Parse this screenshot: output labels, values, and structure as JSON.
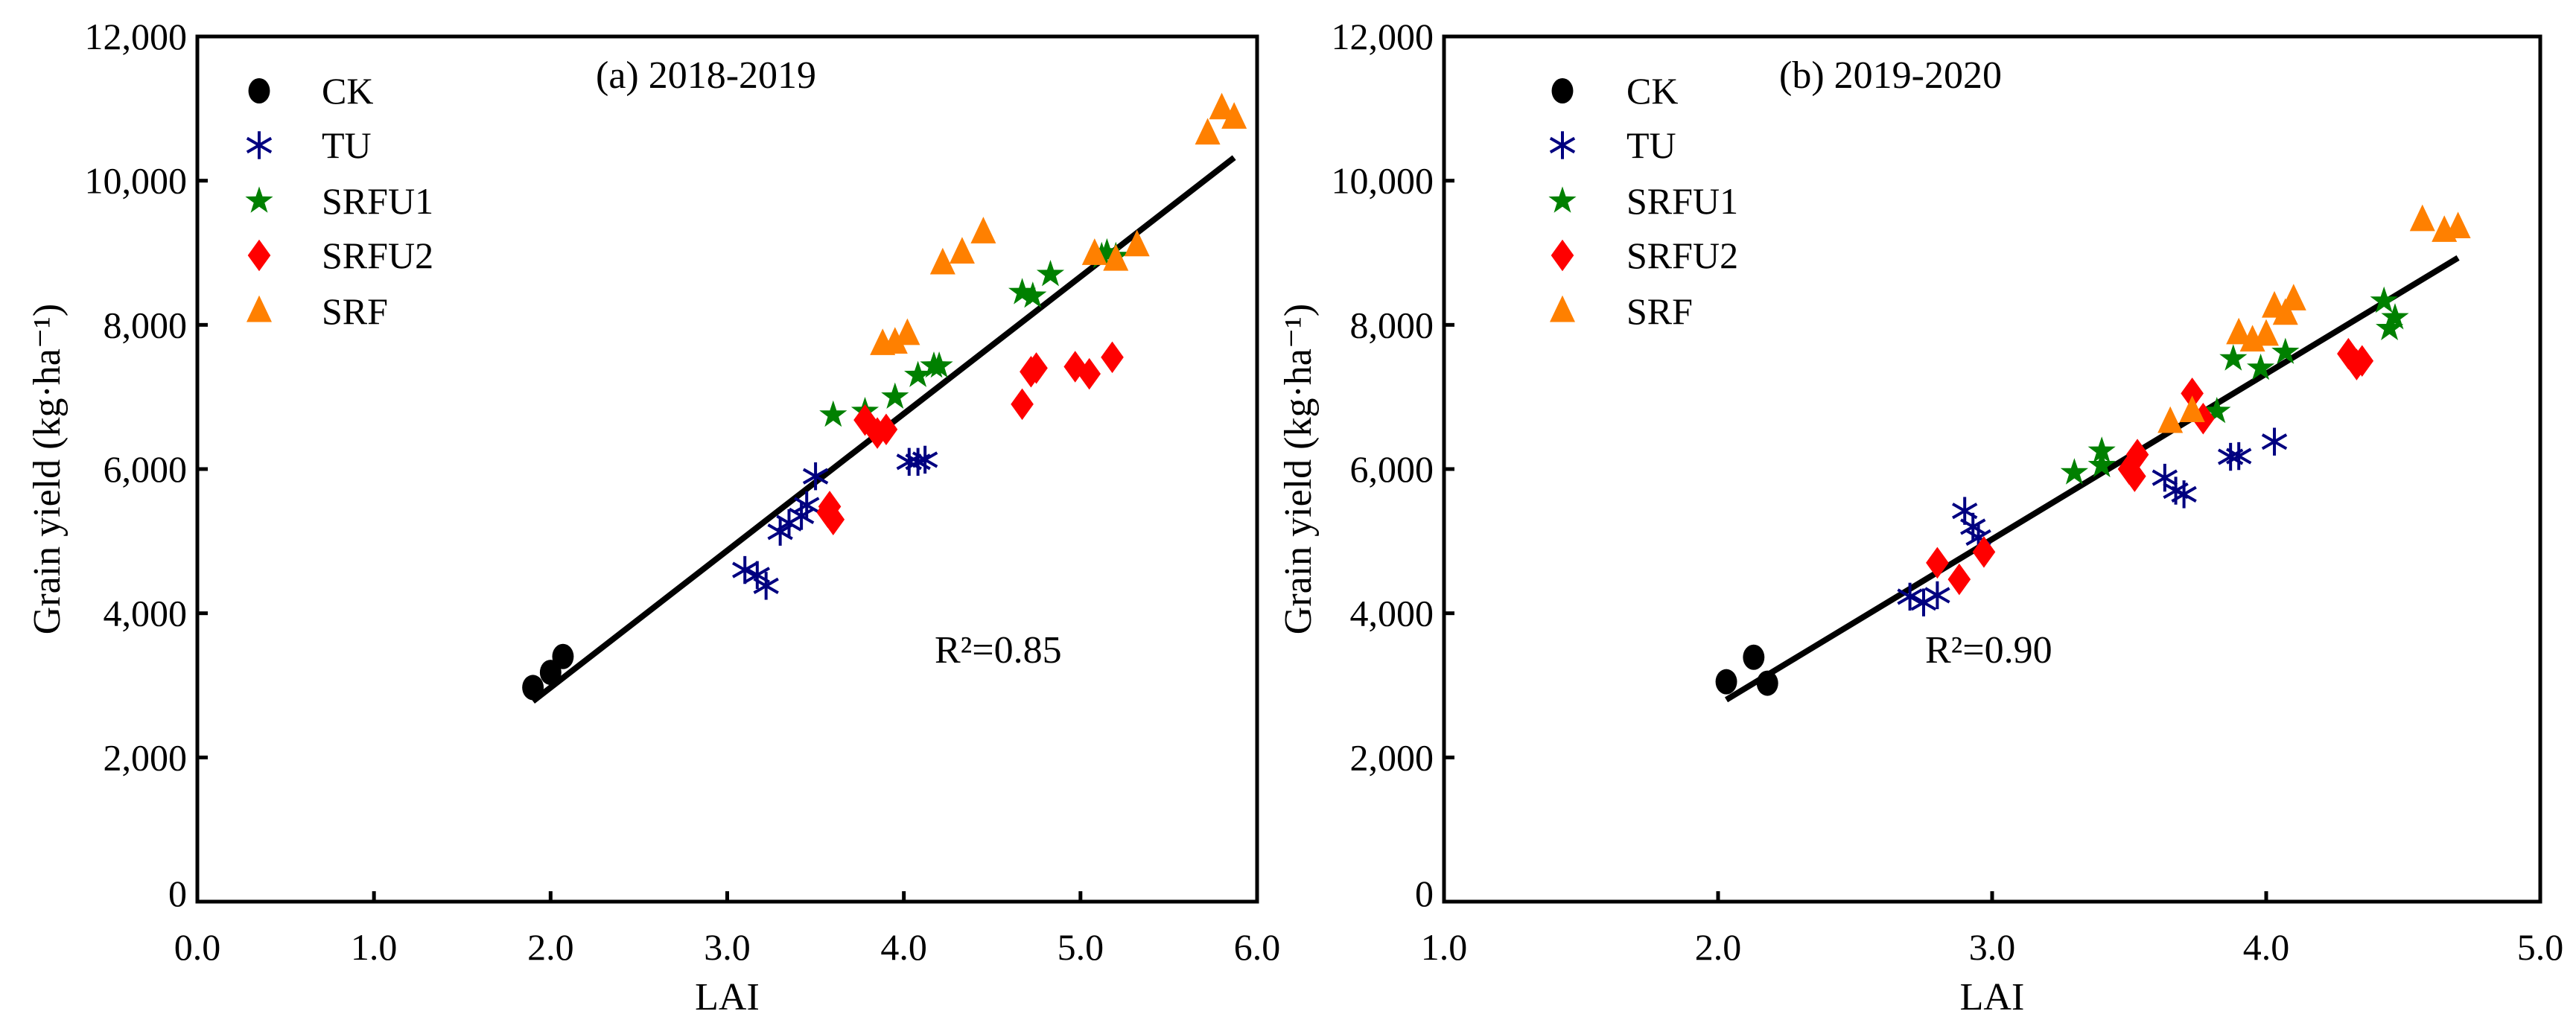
{
  "chart_data": [
    {
      "type": "scatter",
      "title": "(a) 2018-2019",
      "xlabel": "LAI",
      "ylabel": "Grain yield (kg·ha⁻¹)",
      "xlim": [
        0,
        6
      ],
      "ylim": [
        0,
        12000
      ],
      "xticks": [
        "0.0",
        "1.0",
        "2.0",
        "3.0",
        "4.0",
        "5.0",
        "6.0"
      ],
      "yticks": [
        "0",
        "2,000",
        "4,000",
        "6,000",
        "8,000",
        "10,000",
        "12,000"
      ],
      "legend_position": "top-left",
      "annotation": "R²=0.85",
      "fit_line": [
        [
          1.9,
          2780
        ],
        [
          5.87,
          10320
        ]
      ],
      "series": [
        {
          "name": "CK",
          "marker": "circle",
          "color": "#000000",
          "points": [
            [
              1.9,
              2970
            ],
            [
              2.0,
              3180
            ],
            [
              2.07,
              3400
            ]
          ]
        },
        {
          "name": "TU",
          "marker": "asterisk",
          "color": "#000080",
          "points": [
            [
              3.1,
              4600
            ],
            [
              3.17,
              4530
            ],
            [
              3.22,
              4380
            ],
            [
              3.3,
              5130
            ],
            [
              3.35,
              5250
            ],
            [
              3.42,
              5350
            ],
            [
              3.45,
              5500
            ],
            [
              3.5,
              5900
            ],
            [
              4.03,
              6100
            ],
            [
              4.08,
              6100
            ],
            [
              4.12,
              6130
            ]
          ]
        },
        {
          "name": "SRFU1",
          "marker": "star",
          "color": "#008000",
          "points": [
            [
              3.6,
              6750
            ],
            [
              3.78,
              6800
            ],
            [
              3.95,
              7000
            ],
            [
              4.08,
              7300
            ],
            [
              4.17,
              7430
            ],
            [
              4.2,
              7430
            ],
            [
              4.67,
              8450
            ],
            [
              4.73,
              8400
            ],
            [
              4.83,
              8700
            ],
            [
              5.12,
              8950
            ],
            [
              5.15,
              9000
            ],
            [
              5.2,
              8950
            ]
          ]
        },
        {
          "name": "SRFU2",
          "marker": "diamond",
          "color": "#ff0000",
          "points": [
            [
              3.78,
              6680
            ],
            [
              3.85,
              6500
            ],
            [
              3.9,
              6550
            ],
            [
              3.58,
              5480
            ],
            [
              3.6,
              5300
            ],
            [
              3.57,
              5400
            ],
            [
              4.67,
              6900
            ],
            [
              4.72,
              7350
            ],
            [
              4.75,
              7400
            ],
            [
              4.97,
              7420
            ],
            [
              5.05,
              7320
            ],
            [
              5.18,
              7550
            ]
          ]
        },
        {
          "name": "SRF",
          "marker": "triangle",
          "color": "#ff8000",
          "points": [
            [
              3.88,
              7730
            ],
            [
              3.95,
              7750
            ],
            [
              4.02,
              7870
            ],
            [
              4.22,
              8850
            ],
            [
              4.33,
              9000
            ],
            [
              4.45,
              9280
            ],
            [
              5.08,
              8980
            ],
            [
              5.2,
              8900
            ],
            [
              5.32,
              9100
            ],
            [
              5.72,
              10650
            ],
            [
              5.8,
              11000
            ],
            [
              5.87,
              10870
            ]
          ]
        }
      ]
    },
    {
      "type": "scatter",
      "title": "(b) 2019-2020",
      "xlabel": "LAI",
      "ylabel": "Grain yield (kg·ha⁻¹)",
      "xlim": [
        1,
        5
      ],
      "ylim": [
        0,
        12000
      ],
      "xticks": [
        "1.0",
        "2.0",
        "3.0",
        "4.0",
        "5.0"
      ],
      "yticks": [
        "0",
        "2,000",
        "4,000",
        "6,000",
        "8,000",
        "10,000",
        "12,000"
      ],
      "legend_position": "top-left",
      "annotation": "R²=0.90",
      "fit_line": [
        [
          2.03,
          2800
        ],
        [
          4.7,
          8930
        ]
      ],
      "series": [
        {
          "name": "CK",
          "marker": "circle",
          "color": "#000000",
          "points": [
            [
              2.03,
              3050
            ],
            [
              2.13,
              3390
            ],
            [
              2.18,
              3030
            ]
          ]
        },
        {
          "name": "TU",
          "marker": "asterisk",
          "color": "#000080",
          "points": [
            [
              2.7,
              4230
            ],
            [
              2.75,
              4150
            ],
            [
              2.8,
              4250
            ],
            [
              2.9,
              5420
            ],
            [
              2.93,
              5200
            ],
            [
              2.95,
              5050
            ],
            [
              3.63,
              5880
            ],
            [
              3.67,
              5700
            ],
            [
              3.7,
              5650
            ],
            [
              3.87,
              6170
            ],
            [
              3.9,
              6180
            ],
            [
              4.03,
              6380
            ]
          ]
        },
        {
          "name": "SRFU1",
          "marker": "star",
          "color": "#008000",
          "points": [
            [
              3.3,
              5950
            ],
            [
              3.4,
              6250
            ],
            [
              3.4,
              6050
            ],
            [
              3.82,
              6800
            ],
            [
              3.88,
              7530
            ],
            [
              3.98,
              7400
            ],
            [
              4.07,
              7620
            ],
            [
              4.43,
              8330
            ],
            [
              4.47,
              8100
            ],
            [
              4.45,
              7950
            ]
          ]
        },
        {
          "name": "SRFU2",
          "marker": "diamond",
          "color": "#ff0000",
          "points": [
            [
              2.8,
              4700
            ],
            [
              2.88,
              4470
            ],
            [
              2.97,
              4850
            ],
            [
              3.5,
              6000
            ],
            [
              3.52,
              5900
            ],
            [
              3.53,
              6200
            ],
            [
              3.73,
              7050
            ],
            [
              3.77,
              6700
            ],
            [
              4.3,
              7600
            ],
            [
              4.33,
              7450
            ],
            [
              4.35,
              7500
            ]
          ]
        },
        {
          "name": "SRF",
          "marker": "triangle",
          "color": "#ff8000",
          "points": [
            [
              3.65,
              6650
            ],
            [
              3.73,
              6800
            ],
            [
              3.9,
              7880
            ],
            [
              3.95,
              7780
            ],
            [
              4.0,
              7860
            ],
            [
              4.03,
              8250
            ],
            [
              4.07,
              8150
            ],
            [
              4.1,
              8350
            ],
            [
              4.57,
              9450
            ],
            [
              4.65,
              9300
            ],
            [
              4.7,
              9350
            ]
          ]
        }
      ]
    }
  ]
}
